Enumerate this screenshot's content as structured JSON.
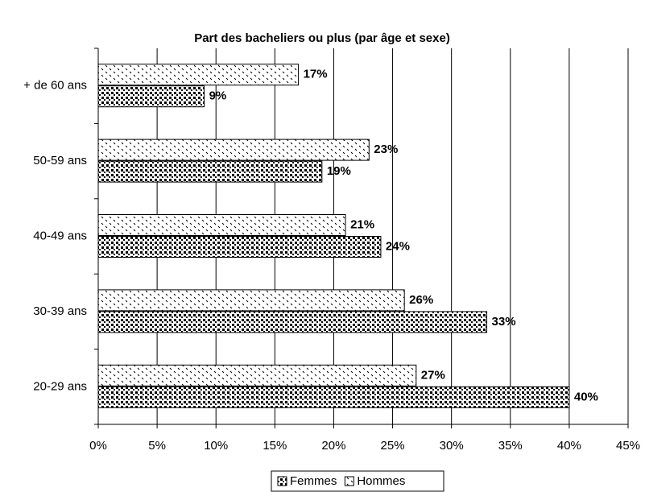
{
  "chart_data": {
    "type": "barh",
    "title": "Part des bacheliers ou plus (par âge et sexe)",
    "categories": [
      "+ de 60 ans",
      "50-59 ans",
      "40-49 ans",
      "30-39 ans",
      "20-29 ans"
    ],
    "series": [
      {
        "name": "Femmes",
        "color": "#000000",
        "values": [
          9,
          19,
          24,
          33,
          40
        ],
        "value_labels": [
          "9%",
          "19%",
          "24%",
          "33%",
          "40%"
        ]
      },
      {
        "name": "Hommes",
        "color": "#000000",
        "values": [
          17,
          23,
          21,
          26,
          27
        ],
        "value_labels": [
          "17%",
          "23%",
          "21%",
          "26%",
          "27%"
        ]
      }
    ],
    "xlim": [
      0,
      45
    ],
    "xticks": [
      {
        "value": 0,
        "label": "0%"
      },
      {
        "value": 5,
        "label": "5%"
      },
      {
        "value": 10,
        "label": "10%"
      },
      {
        "value": 15,
        "label": "15%"
      },
      {
        "value": 20,
        "label": "20%"
      },
      {
        "value": 25,
        "label": "25%"
      },
      {
        "value": 30,
        "label": "30%"
      },
      {
        "value": 35,
        "label": "35%"
      },
      {
        "value": 40,
        "label": "40%"
      },
      {
        "value": 45,
        "label": "45%"
      }
    ],
    "grid": true,
    "legend": "bottom"
  }
}
